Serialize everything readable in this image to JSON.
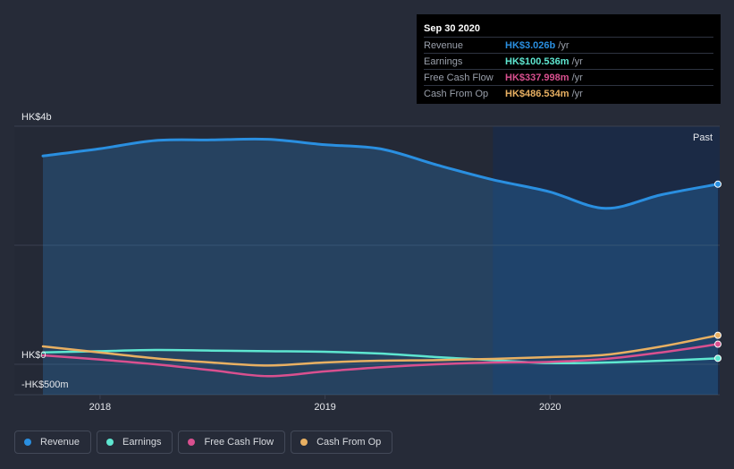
{
  "tooltip": {
    "date": "Sep 30 2020",
    "rows": [
      {
        "label": "Revenue",
        "value": "HK$3.026b",
        "unit": "/yr",
        "color": "#2a8fe0"
      },
      {
        "label": "Earnings",
        "value": "HK$100.536m",
        "unit": "/yr",
        "color": "#5ee6d0"
      },
      {
        "label": "Free Cash Flow",
        "value": "HK$337.998m",
        "unit": "/yr",
        "color": "#d9508f"
      },
      {
        "label": "Cash From Op",
        "value": "HK$486.534m",
        "unit": "/yr",
        "color": "#e8b062"
      }
    ]
  },
  "legend": [
    {
      "label": "Revenue",
      "color": "#2a8fe0"
    },
    {
      "label": "Earnings",
      "color": "#5ee6d0"
    },
    {
      "label": "Free Cash Flow",
      "color": "#d9508f"
    },
    {
      "label": "Cash From Op",
      "color": "#e8b062"
    }
  ],
  "chart_data": {
    "type": "line",
    "y_unit": "HK$ millions",
    "ylim": [
      -500,
      4000
    ],
    "y_tick_labels": [
      {
        "value": 4000,
        "label": "HK$4b"
      },
      {
        "value": 0,
        "label": "HK$0"
      },
      {
        "value": -500,
        "label": "-HK$500m"
      }
    ],
    "x_tick_labels": [
      {
        "value": 2018.0,
        "label": "2018"
      },
      {
        "value": 2019.0,
        "label": "2019"
      },
      {
        "value": 2020.0,
        "label": "2020"
      }
    ],
    "xlim": [
      2017.67,
      2020.75
    ],
    "past_label": "Past",
    "past_start": 2019.75,
    "series": [
      {
        "name": "Revenue",
        "color": "#2a8fe0",
        "fill": true,
        "x": [
          2017.75,
          2018.0,
          2018.25,
          2018.5,
          2018.75,
          2019.0,
          2019.25,
          2019.5,
          2019.75,
          2020.0,
          2020.25,
          2020.5,
          2020.75
        ],
        "values": [
          3500,
          3620,
          3760,
          3770,
          3780,
          3690,
          3620,
          3350,
          3100,
          2900,
          2620,
          2850,
          3026
        ]
      },
      {
        "name": "Earnings",
        "color": "#5ee6d0",
        "x": [
          2017.75,
          2018.0,
          2018.25,
          2018.5,
          2018.75,
          2019.0,
          2019.25,
          2019.5,
          2019.75,
          2020.0,
          2020.25,
          2020.5,
          2020.75
        ],
        "values": [
          200,
          220,
          240,
          230,
          220,
          210,
          180,
          120,
          70,
          20,
          30,
          60,
          100
        ]
      },
      {
        "name": "Free Cash Flow",
        "color": "#d9508f",
        "x": [
          2017.75,
          2018.0,
          2018.25,
          2018.5,
          2018.75,
          2019.0,
          2019.25,
          2019.5,
          2019.75,
          2020.0,
          2020.25,
          2020.5,
          2020.75
        ],
        "values": [
          150,
          80,
          0,
          -100,
          -200,
          -120,
          -50,
          0,
          30,
          40,
          90,
          200,
          338
        ]
      },
      {
        "name": "Cash From Op",
        "color": "#e8b062",
        "x": [
          2017.75,
          2018.0,
          2018.25,
          2018.5,
          2018.75,
          2019.0,
          2019.25,
          2019.5,
          2019.75,
          2020.0,
          2020.25,
          2020.5,
          2020.75
        ],
        "values": [
          300,
          200,
          100,
          30,
          -20,
          30,
          60,
          70,
          90,
          120,
          160,
          300,
          487
        ]
      }
    ]
  }
}
